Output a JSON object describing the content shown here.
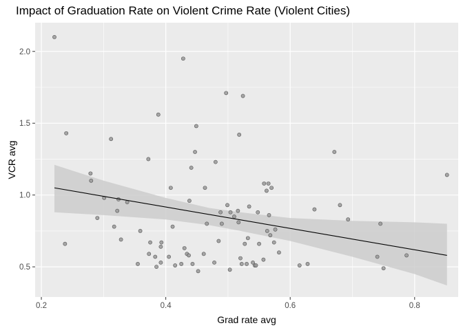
{
  "chart_data": {
    "type": "scatter",
    "title": "Impact of Graduation Rate on Violent Crime Rate (Violent Cities)",
    "xlabel": "Grad rate avg",
    "ylabel": "VCR avg",
    "xlim": [
      0.19,
      0.87
    ],
    "ylim": [
      0.29,
      2.2
    ],
    "x_ticks": [
      0.2,
      0.4,
      0.6,
      0.8
    ],
    "x_tick_labels": [
      "0.2",
      "0.4",
      "0.6",
      "0.8"
    ],
    "y_ticks": [
      0.5,
      1.0,
      1.5,
      2.0
    ],
    "y_tick_labels": [
      "0.5",
      "1.0",
      "1.5",
      "2.0"
    ],
    "grid": true,
    "background": "#ebebeb",
    "point_color": "#999999",
    "fit_line_color": "#000000",
    "ribbon_color": "#cccccc",
    "points": [
      [
        0.221,
        2.1
      ],
      [
        0.238,
        0.66
      ],
      [
        0.24,
        1.43
      ],
      [
        0.279,
        1.15
      ],
      [
        0.28,
        1.1
      ],
      [
        0.29,
        0.84
      ],
      [
        0.301,
        0.98
      ],
      [
        0.312,
        1.39
      ],
      [
        0.317,
        0.78
      ],
      [
        0.322,
        0.89
      ],
      [
        0.324,
        0.97
      ],
      [
        0.328,
        0.69
      ],
      [
        0.338,
        0.95
      ],
      [
        0.355,
        0.52
      ],
      [
        0.359,
        0.75
      ],
      [
        0.372,
        1.25
      ],
      [
        0.373,
        0.59
      ],
      [
        0.375,
        0.67
      ],
      [
        0.383,
        0.57
      ],
      [
        0.385,
        0.5
      ],
      [
        0.388,
        1.56
      ],
      [
        0.392,
        0.64
      ],
      [
        0.393,
        0.67
      ],
      [
        0.392,
        0.53
      ],
      [
        0.405,
        0.57
      ],
      [
        0.408,
        1.05
      ],
      [
        0.411,
        0.78
      ],
      [
        0.415,
        0.51
      ],
      [
        0.425,
        0.52
      ],
      [
        0.428,
        1.95
      ],
      [
        0.43,
        0.63
      ],
      [
        0.434,
        0.59
      ],
      [
        0.437,
        0.58
      ],
      [
        0.438,
        0.96
      ],
      [
        0.441,
        1.19
      ],
      [
        0.443,
        0.52
      ],
      [
        0.447,
        1.3
      ],
      [
        0.449,
        1.48
      ],
      [
        0.452,
        0.47
      ],
      [
        0.461,
        0.59
      ],
      [
        0.463,
        1.05
      ],
      [
        0.466,
        0.8
      ],
      [
        0.478,
        0.53
      ],
      [
        0.48,
        1.23
      ],
      [
        0.485,
        0.68
      ],
      [
        0.488,
        0.88
      ],
      [
        0.49,
        0.8
      ],
      [
        0.497,
        1.71
      ],
      [
        0.499,
        0.93
      ],
      [
        0.503,
        0.48
      ],
      [
        0.504,
        0.88
      ],
      [
        0.51,
        0.85
      ],
      [
        0.516,
        0.89
      ],
      [
        0.517,
        0.81
      ],
      [
        0.518,
        1.42
      ],
      [
        0.52,
        0.56
      ],
      [
        0.522,
        0.52
      ],
      [
        0.524,
        1.69
      ],
      [
        0.527,
        0.66
      ],
      [
        0.53,
        0.52
      ],
      [
        0.532,
        0.7
      ],
      [
        0.534,
        0.92
      ],
      [
        0.54,
        0.53
      ],
      [
        0.543,
        0.51
      ],
      [
        0.545,
        0.51
      ],
      [
        0.548,
        0.88
      ],
      [
        0.55,
        0.66
      ],
      [
        0.557,
        0.55
      ],
      [
        0.558,
        1.08
      ],
      [
        0.562,
        1.03
      ],
      [
        0.563,
        0.75
      ],
      [
        0.565,
        1.08
      ],
      [
        0.566,
        0.86
      ],
      [
        0.568,
        0.72
      ],
      [
        0.57,
        1.05
      ],
      [
        0.574,
        0.67
      ],
      [
        0.576,
        0.76
      ],
      [
        0.582,
        0.6
      ],
      [
        0.615,
        0.51
      ],
      [
        0.628,
        0.52
      ],
      [
        0.639,
        0.9
      ],
      [
        0.671,
        1.3
      ],
      [
        0.68,
        0.93
      ],
      [
        0.693,
        0.83
      ],
      [
        0.74,
        0.57
      ],
      [
        0.745,
        0.8
      ],
      [
        0.75,
        0.49
      ],
      [
        0.787,
        0.58
      ],
      [
        0.852,
        1.14
      ]
    ],
    "fit_line": {
      "x": [
        0.221,
        0.852
      ],
      "y": [
        1.05,
        0.58
      ]
    },
    "confidence_band": {
      "x": [
        0.221,
        0.3,
        0.4,
        0.47,
        0.52,
        0.6,
        0.7,
        0.8,
        0.852
      ],
      "lower": [
        0.88,
        0.86,
        0.83,
        0.79,
        0.75,
        0.68,
        0.57,
        0.45,
        0.37
      ],
      "upper": [
        1.21,
        1.1,
        0.98,
        0.91,
        0.88,
        0.84,
        0.82,
        0.81,
        0.8
      ]
    }
  }
}
